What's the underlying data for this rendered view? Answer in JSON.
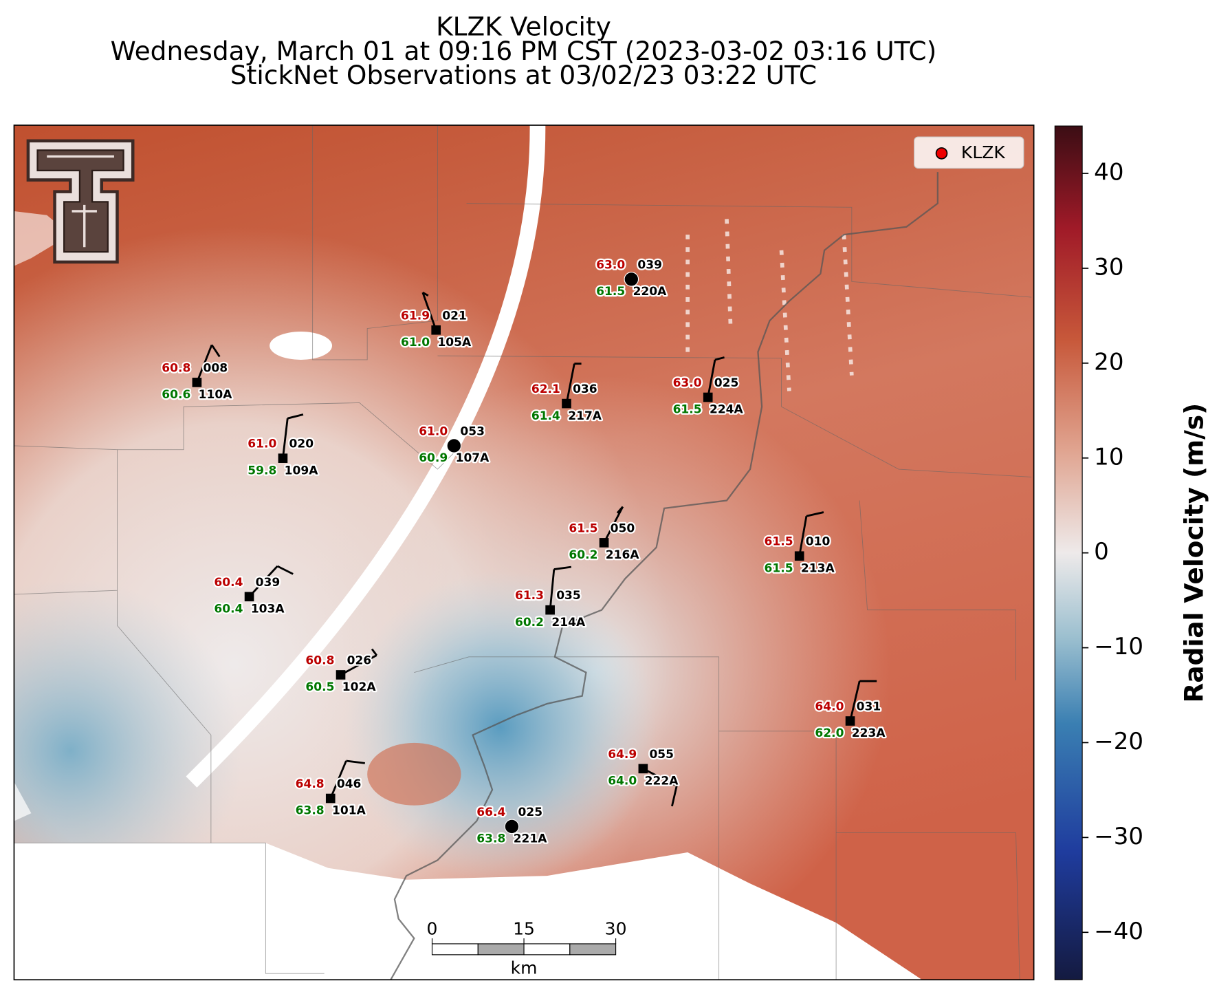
{
  "title": [
    "KLZK Velocity",
    "Wednesday, March 01 at 09:16 PM CST (2023-03-02 03:16 UTC)",
    "StickNet Observations at 03/02/23 03:22 UTC"
  ],
  "legend": "KLZK",
  "colorbar": {
    "label": "Radial Velocity (m/s)",
    "lim": [
      -45,
      45
    ],
    "ticks": [
      {
        "value": -40,
        "label": "−40"
      },
      {
        "value": -30,
        "label": "−30"
      },
      {
        "value": -20,
        "label": "−20"
      },
      {
        "value": -10,
        "label": "−10"
      },
      0,
      10,
      20,
      30,
      40
    ]
  },
  "scalebar": {
    "ticks": [
      0,
      15,
      30
    ],
    "unit": "km"
  },
  "stations": [
    {
      "id": "220A",
      "temp": "63.0",
      "dew": "61.5",
      "pressure": "039"
    },
    {
      "id": "105A",
      "temp": "61.9",
      "dew": "61.0",
      "pressure": "021"
    },
    {
      "id": "110A",
      "temp": "60.8",
      "dew": "60.6",
      "pressure": "008"
    },
    {
      "id": "217A",
      "temp": "62.1",
      "dew": "61.4",
      "pressure": "036"
    },
    {
      "id": "224A",
      "temp": "63.0",
      "dew": "61.5",
      "pressure": "025"
    },
    {
      "id": "109A",
      "temp": "61.0",
      "dew": "59.8",
      "pressure": "020"
    },
    {
      "id": "107A",
      "temp": "61.0",
      "dew": "60.9",
      "pressure": "053"
    },
    {
      "id": "216A",
      "temp": "61.5",
      "dew": "60.2",
      "pressure": "050"
    },
    {
      "id": "213A",
      "temp": "61.5",
      "dew": "61.5",
      "pressure": "010"
    },
    {
      "id": "103A",
      "temp": "60.4",
      "dew": "60.4",
      "pressure": "039"
    },
    {
      "id": "214A",
      "temp": "61.3",
      "dew": "60.2",
      "pressure": "035"
    },
    {
      "id": "102A",
      "temp": "60.8",
      "dew": "60.5",
      "pressure": "026"
    },
    {
      "id": "223A",
      "temp": "64.0",
      "dew": "62.0",
      "pressure": "031"
    },
    {
      "id": "222A",
      "temp": "64.9",
      "dew": "64.0",
      "pressure": "055"
    },
    {
      "id": "101A",
      "temp": "64.8",
      "dew": "63.8",
      "pressure": "046"
    },
    {
      "id": "221A",
      "temp": "66.4",
      "dew": "63.8",
      "pressure": "025"
    }
  ]
}
